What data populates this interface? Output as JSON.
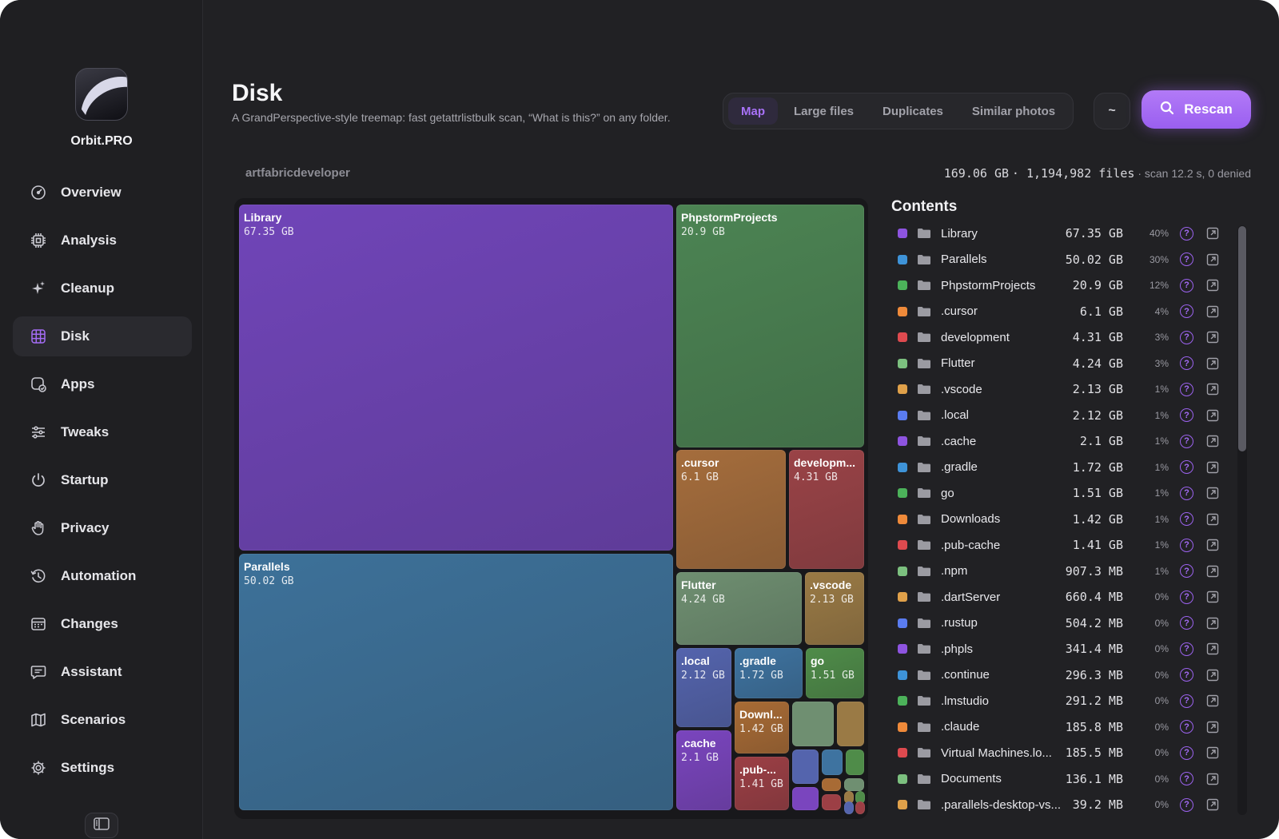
{
  "app": {
    "name": "Orbit.PRO"
  },
  "sidebar": {
    "items": [
      {
        "label": "Overview",
        "icon": "gauge-icon"
      },
      {
        "label": "Analysis",
        "icon": "chip-icon"
      },
      {
        "label": "Cleanup",
        "icon": "sparkles-icon"
      },
      {
        "label": "Disk",
        "icon": "grid-icon",
        "active": true
      },
      {
        "label": "Apps",
        "icon": "app-check-icon"
      },
      {
        "label": "Tweaks",
        "icon": "sliders-icon"
      },
      {
        "label": "Startup",
        "icon": "power-icon"
      },
      {
        "label": "Privacy",
        "icon": "hand-icon"
      },
      {
        "label": "Automation",
        "icon": "history-icon"
      },
      {
        "label": "Changes",
        "icon": "calendar-icon"
      },
      {
        "label": "Assistant",
        "icon": "chat-icon"
      },
      {
        "label": "Scenarios",
        "icon": "map-icon"
      },
      {
        "label": "Settings",
        "icon": "gear-icon"
      }
    ]
  },
  "header": {
    "title": "Disk",
    "subtitle": "A GrandPerspective-style treemap: fast getattrlistbulk scan, “What is this?” on any folder.",
    "tabs": [
      {
        "label": "Map",
        "active": true
      },
      {
        "label": "Large files"
      },
      {
        "label": "Duplicates"
      },
      {
        "label": "Similar photos"
      }
    ],
    "home_button": "~",
    "rescan_label": "Rescan"
  },
  "scan": {
    "path": "artfabricdeveloper",
    "total": "169.06 GB",
    "files": "1,194,982 files",
    "details": "scan 12.2 s, 0 denied"
  },
  "colors": {
    "accent": "#a46cf5",
    "purple": "#7b48c2",
    "blue": "#3f7fae",
    "green": "#4f8f55",
    "orange": "#b2743c",
    "red": "#a3484d"
  },
  "treemap": {
    "tiles": [
      {
        "name": "Library",
        "size": "67.35 GB",
        "color": "#7045b8"
      },
      {
        "name": "Parallels",
        "size": "50.02 GB",
        "color": "#3d7199"
      },
      {
        "name": "PhpstormProjects",
        "size": "20.9 GB",
        "color": "#4c8453"
      },
      {
        "name": ".cursor",
        "size": "6.1 GB",
        "color": "#a56d3c"
      },
      {
        "name": "developm...",
        "size": "4.31 GB",
        "color": "#9a4347"
      },
      {
        "name": "Flutter",
        "size": "4.24 GB",
        "color": "#6f8f71"
      },
      {
        "name": ".vscode",
        "size": "2.13 GB",
        "color": "#9a7a45"
      },
      {
        "name": ".local",
        "size": "2.12 GB",
        "color": "#5464ad"
      },
      {
        "name": ".gradle",
        "size": "1.72 GB",
        "color": "#3e73a0"
      },
      {
        "name": "go",
        "size": "1.51 GB",
        "color": "#4f8c49"
      },
      {
        "name": "Downl...",
        "size": "1.42 GB",
        "color": "#a86b35"
      },
      {
        "name": ".cache",
        "size": "2.1 GB",
        "color": "#7a45be"
      },
      {
        "name": ".pub-...",
        "size": "1.41 GB",
        "color": "#9c3f45"
      }
    ]
  },
  "contents": {
    "title": "Contents",
    "items": [
      {
        "name": "Library",
        "size": "67.35 GB",
        "pct": "40%",
        "color": "#8e54e0"
      },
      {
        "name": "Parallels",
        "size": "50.02 GB",
        "pct": "30%",
        "color": "#3e93d8"
      },
      {
        "name": "PhpstormProjects",
        "size": "20.9 GB",
        "pct": "12%",
        "color": "#4cb25a"
      },
      {
        "name": ".cursor",
        "size": "6.1 GB",
        "pct": "4%",
        "color": "#ef8a3a"
      },
      {
        "name": "development",
        "size": "4.31 GB",
        "pct": "3%",
        "color": "#de4a4f"
      },
      {
        "name": "Flutter",
        "size": "4.24 GB",
        "pct": "3%",
        "color": "#7cc07f"
      },
      {
        "name": ".vscode",
        "size": "2.13 GB",
        "pct": "1%",
        "color": "#e0a14a"
      },
      {
        "name": ".local",
        "size": "2.12 GB",
        "pct": "1%",
        "color": "#5a7cf0"
      },
      {
        "name": ".cache",
        "size": "2.1 GB",
        "pct": "1%",
        "color": "#8e54e0"
      },
      {
        "name": ".gradle",
        "size": "1.72 GB",
        "pct": "1%",
        "color": "#3e93d8"
      },
      {
        "name": "go",
        "size": "1.51 GB",
        "pct": "1%",
        "color": "#4cb25a"
      },
      {
        "name": "Downloads",
        "size": "1.42 GB",
        "pct": "1%",
        "color": "#ef8a3a"
      },
      {
        "name": ".pub-cache",
        "size": "1.41 GB",
        "pct": "1%",
        "color": "#de4a4f"
      },
      {
        "name": ".npm",
        "size": "907.3 MB",
        "pct": "1%",
        "color": "#7cc07f"
      },
      {
        "name": ".dartServer",
        "size": "660.4 MB",
        "pct": "0%",
        "color": "#e0a14a"
      },
      {
        "name": ".rustup",
        "size": "504.2 MB",
        "pct": "0%",
        "color": "#5a7cf0"
      },
      {
        "name": ".phpls",
        "size": "341.4 MB",
        "pct": "0%",
        "color": "#8e54e0"
      },
      {
        "name": ".continue",
        "size": "296.3 MB",
        "pct": "0%",
        "color": "#3e93d8"
      },
      {
        "name": ".lmstudio",
        "size": "291.2 MB",
        "pct": "0%",
        "color": "#4cb25a"
      },
      {
        "name": ".claude",
        "size": "185.8 MB",
        "pct": "0%",
        "color": "#ef8a3a"
      },
      {
        "name": "Virtual Machines.lo...",
        "size": "185.5 MB",
        "pct": "0%",
        "color": "#de4a4f"
      },
      {
        "name": "Documents",
        "size": "136.1 MB",
        "pct": "0%",
        "color": "#7cc07f"
      },
      {
        "name": ".parallels-desktop-vs...",
        "size": "39.2 MB",
        "pct": "0%",
        "color": "#e0a14a"
      }
    ],
    "help_glyph": "?"
  }
}
